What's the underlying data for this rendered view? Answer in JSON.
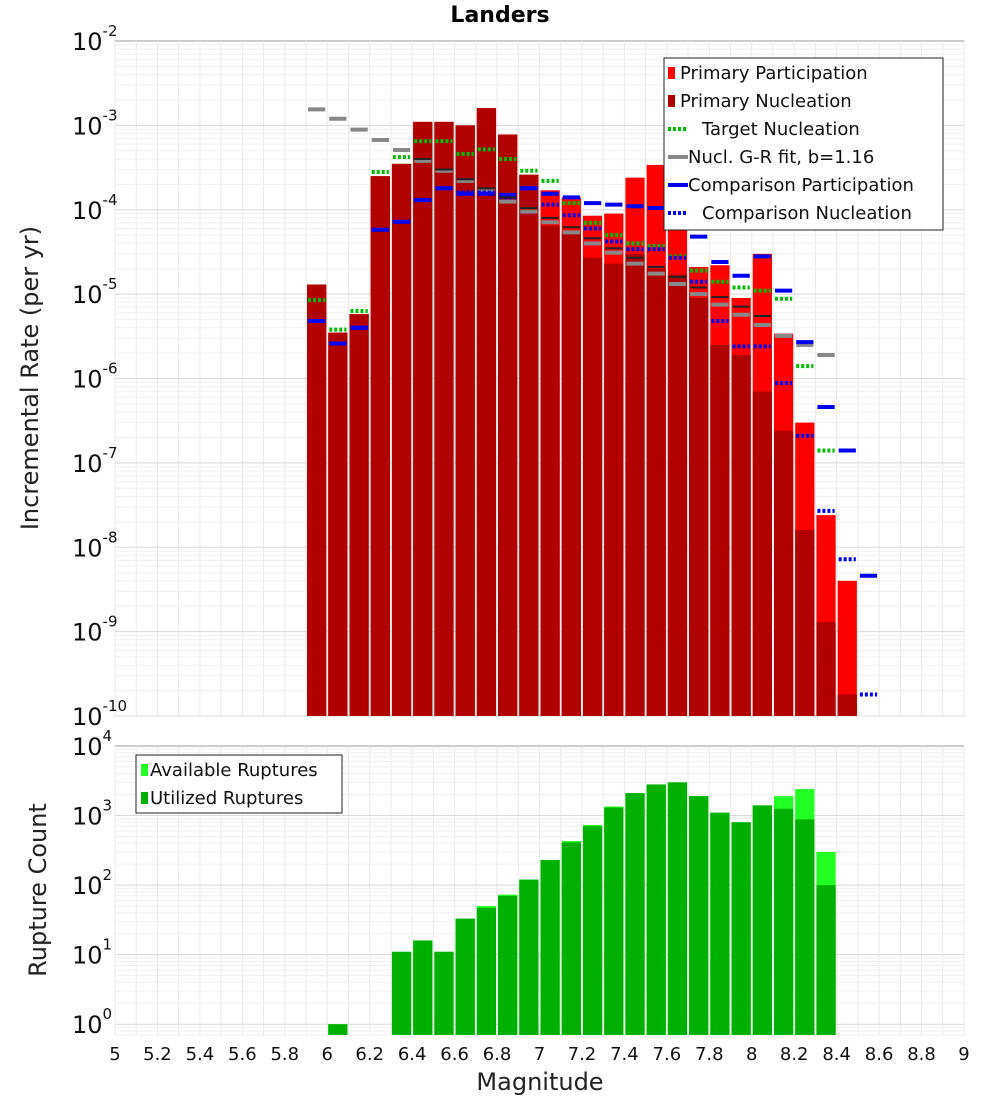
{
  "chart_data": [
    {
      "type": "bar",
      "title": "Landers",
      "ylabel": "Incremental Rate (per yr)",
      "y_scale": "log",
      "xlim": [
        5,
        9
      ],
      "ylim": [
        1e-10,
        0.01
      ],
      "ytick_exponents": [
        "-10",
        "-9",
        "-8",
        "-7",
        "-6",
        "-5",
        "-4",
        "-3",
        "-2"
      ],
      "bin_width": 0.1,
      "x": [
        5.95,
        6.05,
        6.15,
        6.25,
        6.35,
        6.45,
        6.55,
        6.65,
        6.75,
        6.85,
        6.95,
        7.05,
        7.15,
        7.25,
        7.35,
        7.45,
        7.55,
        7.65,
        7.75,
        7.85,
        7.95,
        8.05,
        8.15,
        8.25,
        8.35,
        8.45,
        8.55
      ],
      "legend_position": "top-right",
      "series": [
        {
          "name": "Primary Participation",
          "kind": "bar",
          "color": "#ff0000",
          "values": [
            1.3e-05,
            3.5e-06,
            5.8e-06,
            0.00025,
            0.00035,
            0.0011,
            0.0011,
            0.001,
            0.0016,
            0.00078,
            0.00026,
            0.00017,
            0.00014,
            8.5e-05,
            9e-05,
            0.00024,
            0.00034,
            0.0001,
            2.1e-05,
            2.2e-05,
            9e-06,
            3e-05,
            3.4e-06,
            3e-07,
            2.4e-08,
            4e-09,
            null
          ]
        },
        {
          "name": "Primary Nucleation",
          "kind": "bar",
          "color": "#b00000",
          "values": [
            1.3e-05,
            3.5e-06,
            5.8e-06,
            0.00025,
            0.00035,
            0.0011,
            0.0011,
            0.001,
            0.0016,
            0.00078,
            0.00026,
            6.5e-05,
            5.3e-05,
            2.7e-05,
            2.3e-05,
            3e-05,
            2e-05,
            1.7e-05,
            9e-06,
            2.5e-06,
            1.9e-06,
            7e-07,
            2.4e-07,
            1.6e-08,
            1.3e-09,
            1.8e-10,
            null
          ]
        },
        {
          "name": "Target Nucleation",
          "kind": "dotted",
          "color": "#00bb00",
          "values": [
            8.5e-06,
            3.8e-06,
            6.3e-06,
            0.00028,
            0.00042,
            0.00065,
            0.00065,
            0.00046,
            0.00052,
            0.0004,
            0.00029,
            0.00022,
            0.00012,
            7e-05,
            5e-05,
            4e-05,
            3.7e-05,
            2.8e-05,
            1.9e-05,
            1.4e-05,
            1.2e-05,
            1.1e-05,
            8.8e-06,
            1.4e-06,
            1.4e-07,
            null,
            null
          ]
        },
        {
          "name": "Nucl. G-R fit, b=1.16",
          "kind": "line",
          "color": "#888888",
          "values": [
            0.00155,
            0.0012,
            0.00089,
            0.00067,
            0.00051,
            0.00038,
            0.00029,
            0.00022,
            0.000165,
            0.000125,
            9.5e-05,
            7.1e-05,
            5.4e-05,
            4e-05,
            3.1e-05,
            2.3e-05,
            1.75e-05,
            1.32e-05,
            1e-05,
            7.5e-06,
            5.7e-06,
            4.3e-06,
            3.2e-06,
            2.5e-06,
            1.9e-06,
            null,
            null
          ]
        },
        {
          "name": "Comparison Participation",
          "kind": "line",
          "color": "#0000ee",
          "values": [
            4.8e-06,
            2.6e-06,
            4e-06,
            5.8e-05,
            7.2e-05,
            0.00013,
            0.00018,
            0.000155,
            0.000155,
            0.00015,
            0.00018,
            0.000155,
            0.00014,
            0.00012,
            0.000115,
            0.00011,
            0.000105,
            7.3e-05,
            4.8e-05,
            2.4e-05,
            1.65e-05,
            2.8e-05,
            1.1e-05,
            2.7e-06,
            4.6e-07,
            1.4e-07,
            4.6e-09
          ]
        },
        {
          "name": "Comparison Nucleation",
          "kind": "dotted",
          "color": "#0000ee",
          "values": [
            4.8e-06,
            2.6e-06,
            4e-06,
            5.8e-05,
            7.2e-05,
            0.00013,
            0.00018,
            0.00016,
            0.00016,
            0.00014,
            0.00018,
            0.000115,
            8.6e-05,
            6e-05,
            4.2e-05,
            3.4e-05,
            3.4e-05,
            2.7e-05,
            1.4e-05,
            4.8e-06,
            2.4e-06,
            2.4e-06,
            8.8e-07,
            2.1e-07,
            2.7e-08,
            7.2e-09,
            1.8e-10
          ]
        },
        {
          "name": "",
          "kind": "line",
          "color": "#222222",
          "values": [
            null,
            null,
            null,
            null,
            null,
            0.0004,
            0.0003,
            0.00023,
            0.00018,
            0.00014,
            0.000105,
            8e-05,
            6.2e-05,
            4.6e-05,
            3.5e-05,
            2.7e-05,
            2.1e-05,
            1.6e-05,
            1.2e-05,
            9.2e-06,
            7.1e-06,
            5.5e-06,
            null,
            null,
            null,
            null,
            null
          ]
        }
      ]
    },
    {
      "type": "bar",
      "ylabel": "Rupture Count",
      "xlabel": "Magnitude",
      "y_scale": "log",
      "xlim": [
        5,
        9
      ],
      "ylim": [
        0.7,
        10000
      ],
      "ytick_exponents": [
        "0",
        "1",
        "2",
        "3",
        "4"
      ],
      "xticks": [
        "5",
        "5.2",
        "5.4",
        "5.6",
        "5.8",
        "6",
        "6.2",
        "6.4",
        "6.6",
        "6.8",
        "7",
        "7.2",
        "7.4",
        "7.6",
        "7.8",
        "8",
        "8.2",
        "8.4",
        "8.6",
        "8.8",
        "9"
      ],
      "bin_width": 0.1,
      "x": [
        6.05,
        6.35,
        6.45,
        6.55,
        6.65,
        6.75,
        6.85,
        6.95,
        7.05,
        7.15,
        7.25,
        7.35,
        7.45,
        7.55,
        7.65,
        7.75,
        7.85,
        7.95,
        8.05,
        8.15,
        8.25,
        8.35
      ],
      "legend_position": "top-left",
      "series": [
        {
          "name": "Available Ruptures",
          "color": "#22ff22",
          "values": [
            1,
            11,
            16,
            11,
            33,
            50,
            73,
            120,
            230,
            430,
            730,
            1350,
            2100,
            2800,
            3000,
            1900,
            1100,
            800,
            1400,
            1900,
            2400,
            300
          ]
        },
        {
          "name": "Utilized Ruptures",
          "color": "#00b000",
          "values": [
            1,
            11,
            16,
            11,
            33,
            47,
            70,
            120,
            230,
            410,
            700,
            1300,
            2100,
            2800,
            3000,
            1900,
            1100,
            800,
            1400,
            1250,
            880,
            100
          ]
        }
      ]
    }
  ]
}
